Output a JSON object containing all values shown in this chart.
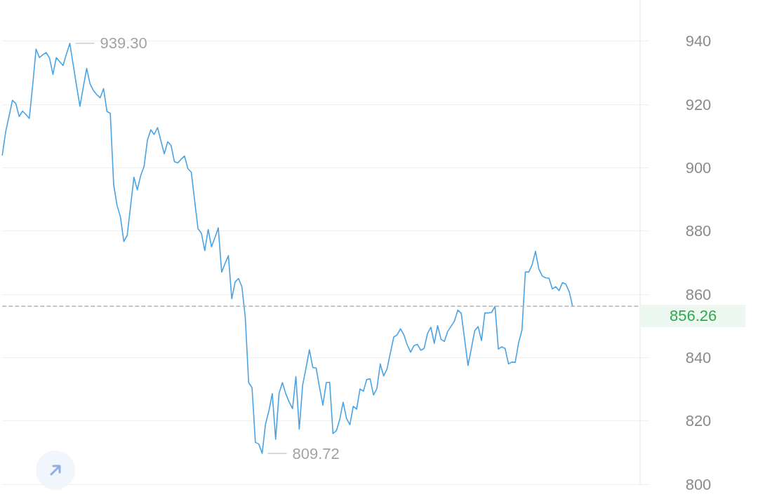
{
  "chart_data": {
    "type": "line",
    "categories": [
      null,
      null,
      null,
      null,
      null,
      null,
      null,
      null,
      null,
      null,
      null,
      null,
      null,
      null,
      null,
      null,
      null,
      null,
      null,
      null,
      null,
      null,
      null,
      null,
      null,
      null,
      null,
      null,
      null,
      null,
      null,
      null,
      null,
      null,
      null,
      null,
      null,
      null,
      null,
      null,
      null,
      null,
      null,
      null,
      null,
      null,
      null,
      null,
      null,
      null,
      null,
      null,
      null,
      null,
      null,
      null,
      null,
      null,
      null,
      null,
      null,
      null,
      null,
      null,
      null,
      null,
      null,
      null,
      null,
      null,
      null,
      null,
      null,
      null,
      null,
      null,
      null,
      null,
      null,
      null,
      null,
      null,
      null,
      null,
      null,
      null,
      null,
      null,
      null,
      null,
      null,
      null,
      null,
      null,
      null,
      null,
      null,
      null,
      null,
      null,
      null,
      null,
      null,
      null,
      null,
      null,
      null,
      null,
      null,
      null,
      null,
      null,
      null,
      null,
      null,
      null,
      null,
      null,
      null,
      null,
      null,
      null,
      null,
      null,
      null,
      null,
      null,
      null,
      null,
      null,
      null,
      null,
      null,
      null,
      null,
      null,
      null,
      null,
      null,
      null,
      null,
      null,
      null,
      null,
      null,
      null,
      null,
      null,
      null,
      null,
      null,
      null,
      null,
      null,
      null,
      null,
      null,
      null,
      null,
      null,
      null,
      null,
      null,
      null,
      null,
      null,
      null,
      null,
      null,
      null,
      null,
      null,
      null,
      null,
      null,
      null,
      null,
      null,
      null,
      null,
      null,
      null,
      null,
      null,
      null,
      null,
      null,
      null,
      null,
      null
    ],
    "values": [
      904.0,
      911.4,
      916.3,
      921.3,
      920.3,
      916.2,
      917.9,
      916.8,
      915.6,
      926.1,
      937.5,
      934.8,
      935.7,
      936.4,
      934.6,
      929.5,
      934.8,
      933.5,
      932.3,
      935.9,
      939.3,
      932.6,
      925.9,
      919.4,
      925.5,
      931.4,
      926.5,
      924.4,
      923.1,
      922.1,
      925.0,
      917.8,
      917.2,
      894.6,
      888.1,
      884.5,
      876.7,
      878.6,
      887.7,
      897.0,
      893.0,
      897.5,
      900.4,
      908.7,
      912.0,
      910.5,
      912.7,
      908.5,
      904.4,
      908.2,
      907.1,
      901.9,
      901.5,
      902.7,
      903.7,
      899.7,
      898.6,
      889.6,
      880.7,
      879.3,
      873.8,
      880.5,
      875.0,
      877.9,
      881.0,
      867.0,
      869.7,
      872.2,
      858.6,
      863.9,
      865.0,
      862.4,
      852.7,
      832.1,
      830.5,
      813.2,
      812.7,
      809.72,
      819.0,
      823.2,
      828.6,
      814.2,
      828.6,
      832.1,
      828.6,
      826.0,
      823.9,
      834.0,
      817.4,
      831.3,
      836.7,
      842.5,
      836.9,
      836.7,
      830.6,
      825.0,
      832.1,
      832.2,
      816.0,
      816.9,
      820.5,
      825.9,
      820.8,
      818.8,
      824.6,
      823.7,
      830.1,
      829.4,
      833.1,
      833.3,
      828.2,
      830.2,
      838.0,
      834.2,
      836.4,
      841.5,
      846.5,
      847.2,
      849.1,
      847.2,
      844.0,
      841.7,
      843.8,
      844.2,
      842.3,
      842.9,
      847.6,
      849.6,
      844.5,
      850.1,
      845.8,
      845.1,
      848.3,
      849.9,
      851.6,
      855.0,
      854.0,
      845.8,
      837.5,
      842.9,
      848.5,
      849.8,
      845.4,
      854.1,
      854.1,
      854.3,
      856.2,
      842.7,
      843.4,
      842.9,
      838.0,
      838.6,
      838.5,
      844.7,
      848.7,
      867.1,
      867.0,
      869.3,
      873.6,
      868.0,
      865.8,
      865.2,
      865.1,
      861.7,
      862.4,
      861.2,
      863.7,
      863.2,
      860.8,
      856.26,
      null,
      null,
      null,
      null,
      null,
      null,
      null,
      null,
      null,
      null,
      null,
      null,
      null,
      null,
      null,
      null,
      null,
      null,
      null,
      null
    ],
    "color": "#4ba3e3",
    "marker": "none",
    "line_style": "solid",
    "ylim": [
      800,
      953
    ],
    "yticks": [
      800,
      820,
      840,
      860,
      880,
      900,
      920,
      940
    ],
    "grid": "y",
    "tick_labels": "y",
    "ref_lines": [
      {
        "axis": "y",
        "value": 856.26,
        "label": "856.26",
        "color": "#b3b3b3",
        "line_style": "dashed"
      }
    ],
    "annotations": [
      "939.30",
      "809.72"
    ]
  }
}
